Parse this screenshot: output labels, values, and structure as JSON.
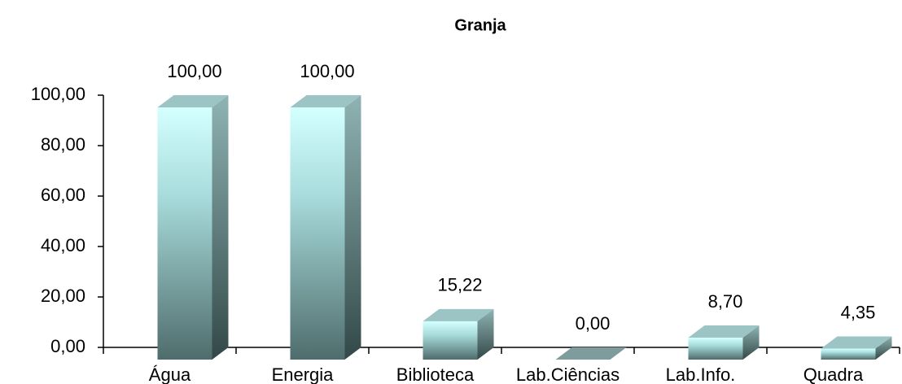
{
  "chart_data": {
    "type": "bar3d",
    "title": "Granja",
    "categories": [
      "Água",
      "Energia",
      "Biblioteca",
      "Lab.Ciências",
      "Lab.Info.",
      "Quadra"
    ],
    "values": [
      100,
      100,
      15.22,
      0,
      8.7,
      4.35
    ],
    "value_labels": [
      "100,00",
      "100,00",
      "15,22",
      "0,00",
      "8,70",
      "4,35"
    ],
    "ylim": [
      0,
      100
    ],
    "yticks": [
      {
        "value": 0,
        "label": "0,00"
      },
      {
        "value": 20,
        "label": "20,00"
      },
      {
        "value": 40,
        "label": "40,00"
      },
      {
        "value": 60,
        "label": "60,00"
      },
      {
        "value": 80,
        "label": "80,00"
      },
      {
        "value": 100,
        "label": "100,00"
      }
    ],
    "color": "#ccffff"
  }
}
